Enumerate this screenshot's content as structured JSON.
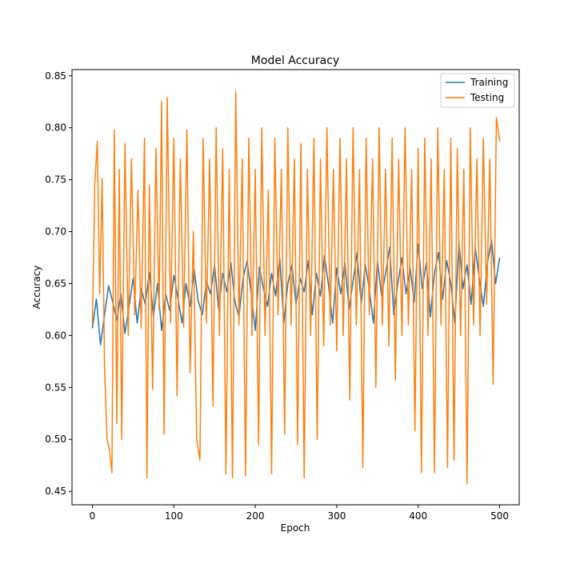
{
  "chart_data": {
    "type": "line",
    "title": "Model Accuracy",
    "xlabel": "Epoch",
    "ylabel": "Accuracy",
    "xlim": [
      -25,
      524
    ],
    "ylim": [
      0.437,
      0.856
    ],
    "xticks": [
      0,
      100,
      200,
      300,
      400,
      500
    ],
    "yticks": [
      0.45,
      0.5,
      0.55,
      0.6,
      0.65,
      0.7,
      0.75,
      0.8,
      0.85
    ],
    "ytick_labels": [
      "0.45",
      "0.50",
      "0.55",
      "0.60",
      "0.65",
      "0.70",
      "0.75",
      "0.80",
      "0.85"
    ],
    "grid": false,
    "legend": "top-right",
    "series": [
      {
        "name": "Training",
        "color": "#1f77b4",
        "x": [
          0,
          5,
          10,
          15,
          20,
          25,
          30,
          35,
          40,
          45,
          50,
          55,
          60,
          65,
          70,
          75,
          80,
          85,
          90,
          95,
          100,
          105,
          110,
          115,
          120,
          125,
          130,
          135,
          140,
          145,
          150,
          155,
          160,
          165,
          170,
          175,
          180,
          185,
          190,
          195,
          200,
          205,
          210,
          215,
          220,
          225,
          230,
          235,
          240,
          245,
          250,
          255,
          260,
          265,
          270,
          275,
          280,
          285,
          290,
          295,
          300,
          305,
          310,
          315,
          320,
          325,
          330,
          335,
          340,
          345,
          350,
          355,
          360,
          365,
          370,
          375,
          380,
          385,
          390,
          395,
          400,
          405,
          410,
          415,
          420,
          425,
          430,
          435,
          440,
          445,
          450,
          455,
          460,
          465,
          470,
          475,
          480,
          485,
          490,
          495,
          500
        ],
        "y": [
          0.607,
          0.635,
          0.591,
          0.62,
          0.648,
          0.632,
          0.615,
          0.64,
          0.602,
          0.628,
          0.655,
          0.612,
          0.645,
          0.63,
          0.661,
          0.618,
          0.65,
          0.605,
          0.64,
          0.624,
          0.658,
          0.636,
          0.612,
          0.65,
          0.628,
          0.664,
          0.633,
          0.62,
          0.652,
          0.64,
          0.668,
          0.625,
          0.66,
          0.642,
          0.67,
          0.633,
          0.618,
          0.655,
          0.672,
          0.64,
          0.605,
          0.666,
          0.645,
          0.628,
          0.66,
          0.638,
          0.675,
          0.612,
          0.65,
          0.668,
          0.63,
          0.655,
          0.642,
          0.672,
          0.62,
          0.66,
          0.638,
          0.677,
          0.648,
          0.612,
          0.665,
          0.64,
          0.67,
          0.625,
          0.652,
          0.68,
          0.63,
          0.668,
          0.645,
          0.612,
          0.672,
          0.638,
          0.66,
          0.685,
          0.62,
          0.65,
          0.675,
          0.64,
          0.665,
          0.632,
          0.688,
          0.645,
          0.67,
          0.618,
          0.66,
          0.68,
          0.635,
          0.672,
          0.65,
          0.612,
          0.69,
          0.645,
          0.668,
          0.63,
          0.685,
          0.655,
          0.628,
          0.67,
          0.692,
          0.65,
          0.675
        ]
      },
      {
        "name": "Testing",
        "color": "#ff7f0e",
        "x": [
          0,
          3,
          6,
          9,
          12,
          15,
          18,
          21,
          24,
          27,
          30,
          33,
          36,
          40,
          44,
          48,
          52,
          56,
          60,
          64,
          67,
          70,
          74,
          78,
          82,
          85,
          88,
          92,
          96,
          100,
          104,
          108,
          112,
          116,
          120,
          124,
          128,
          132,
          136,
          140,
          144,
          148,
          152,
          156,
          160,
          164,
          168,
          172,
          176,
          180,
          184,
          188,
          192,
          196,
          200,
          204,
          208,
          212,
          216,
          220,
          224,
          228,
          232,
          236,
          240,
          244,
          248,
          252,
          256,
          260,
          264,
          268,
          272,
          276,
          280,
          284,
          288,
          292,
          296,
          300,
          304,
          308,
          312,
          316,
          320,
          324,
          328,
          332,
          336,
          340,
          344,
          348,
          352,
          356,
          360,
          364,
          368,
          372,
          376,
          380,
          384,
          388,
          392,
          396,
          400,
          404,
          408,
          412,
          416,
          420,
          424,
          428,
          432,
          436,
          440,
          444,
          448,
          452,
          456,
          460,
          464,
          468,
          472,
          476,
          480,
          484,
          488,
          492,
          496,
          500
        ],
        "y": [
          0.61,
          0.745,
          0.787,
          0.64,
          0.751,
          0.569,
          0.5,
          0.49,
          0.468,
          0.798,
          0.515,
          0.76,
          0.5,
          0.785,
          0.6,
          0.77,
          0.62,
          0.74,
          0.607,
          0.79,
          0.463,
          0.745,
          0.548,
          0.78,
          0.625,
          0.825,
          0.505,
          0.829,
          0.612,
          0.79,
          0.542,
          0.77,
          0.608,
          0.798,
          0.564,
          0.7,
          0.5,
          0.48,
          0.79,
          0.612,
          0.77,
          0.532,
          0.8,
          0.6,
          0.78,
          0.467,
          0.76,
          0.463,
          0.835,
          0.61,
          0.77,
          0.465,
          0.79,
          0.6,
          0.76,
          0.495,
          0.8,
          0.6,
          0.74,
          0.467,
          0.79,
          0.62,
          0.76,
          0.505,
          0.8,
          0.61,
          0.77,
          0.495,
          0.785,
          0.463,
          0.76,
          0.6,
          0.79,
          0.5,
          0.77,
          0.59,
          0.8,
          0.61,
          0.76,
          0.585,
          0.79,
          0.6,
          0.77,
          0.538,
          0.8,
          0.61,
          0.76,
          0.473,
          0.79,
          0.62,
          0.77,
          0.55,
          0.8,
          0.61,
          0.76,
          0.59,
          0.79,
          0.557,
          0.77,
          0.6,
          0.8,
          0.61,
          0.76,
          0.508,
          0.78,
          0.468,
          0.79,
          0.6,
          0.77,
          0.468,
          0.8,
          0.61,
          0.76,
          0.473,
          0.79,
          0.48,
          0.78,
          0.6,
          0.76,
          0.457,
          0.8,
          0.61,
          0.77,
          0.6,
          0.79,
          0.63,
          0.77,
          0.553,
          0.81,
          0.787
        ]
      }
    ]
  }
}
